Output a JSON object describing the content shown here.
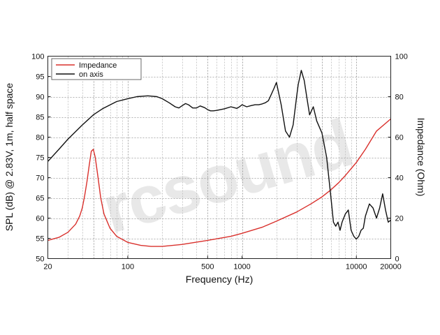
{
  "chart_data": {
    "type": "line",
    "xlabel": "Frequency (Hz)",
    "ylabel_left": "SPL (dB) @ 2.83V, 1m, half space",
    "ylabel_right": "Impedance (Ohm)",
    "x_scale": "log",
    "xlim": [
      20,
      20000
    ],
    "ylim_left": [
      50,
      100
    ],
    "ylim_right": [
      0,
      100
    ],
    "x_ticks": [
      "20",
      "100",
      "500",
      "1000",
      "10000",
      "20000"
    ],
    "y_ticks_left": [
      "50",
      "55",
      "60",
      "65",
      "70",
      "75",
      "80",
      "85",
      "90",
      "95",
      "100"
    ],
    "y_ticks_right": [
      "0",
      "20",
      "40",
      "60",
      "80",
      "100"
    ],
    "grid": true,
    "legend_position": "top-left",
    "watermark": "rcsound",
    "series": [
      {
        "name": "Impedance",
        "axis": "right",
        "color": "#d9302c",
        "x": [
          20,
          25,
          30,
          35,
          38,
          40,
          42,
          44,
          46,
          48,
          50,
          52,
          55,
          58,
          62,
          70,
          80,
          100,
          130,
          160,
          200,
          300,
          500,
          800,
          1000,
          1500,
          2000,
          3000,
          4000,
          5000,
          6000,
          7000,
          8000,
          10000,
          12000,
          15000,
          20000
        ],
        "values": [
          9,
          10.5,
          13,
          17,
          21,
          25,
          31,
          38,
          46,
          53,
          54,
          50,
          40,
          30,
          22,
          15,
          11,
          8,
          6.5,
          6,
          6,
          7,
          9,
          11,
          12.5,
          15.5,
          18.5,
          23,
          27,
          30.5,
          34,
          37.5,
          41,
          47.5,
          54,
          63,
          69
        ]
      },
      {
        "name": "on axis",
        "axis": "left",
        "color": "#111111",
        "x": [
          20,
          25,
          30,
          40,
          50,
          60,
          80,
          100,
          120,
          150,
          180,
          200,
          230,
          260,
          280,
          300,
          320,
          340,
          370,
          400,
          430,
          470,
          500,
          530,
          560,
          600,
          700,
          800,
          850,
          900,
          950,
          1000,
          1100,
          1200,
          1300,
          1400,
          1500,
          1600,
          1700,
          1800,
          1900,
          2000,
          2200,
          2400,
          2600,
          2800,
          3000,
          3100,
          3300,
          3500,
          3700,
          3900,
          4200,
          4500,
          5000,
          5500,
          6000,
          6300,
          6600,
          6900,
          7200,
          7500,
          8000,
          8500,
          9000,
          9500,
          10000,
          10500,
          11000,
          11500,
          12000,
          13000,
          14000,
          15000,
          16000,
          17000,
          18000,
          19000,
          20000
        ],
        "values": [
          74,
          77,
          79.5,
          83,
          85.5,
          87,
          88.8,
          89.5,
          90,
          90.2,
          90,
          89.5,
          88.5,
          87.5,
          87.2,
          87.8,
          88.3,
          88,
          87.2,
          87.2,
          87.7,
          87.3,
          86.8,
          86.5,
          86.5,
          86.6,
          87,
          87.5,
          87.3,
          87.1,
          87.5,
          88,
          87.5,
          87.8,
          88,
          88,
          88.2,
          88.5,
          89,
          90.5,
          92,
          93.5,
          88,
          81.5,
          80,
          83,
          90,
          93,
          96.5,
          94,
          89.5,
          85.5,
          87.5,
          84,
          81,
          75,
          65,
          59,
          58,
          59,
          57,
          59,
          61,
          62,
          57,
          55.5,
          54.8,
          55.5,
          57,
          57.5,
          60.5,
          63.5,
          62.5,
          60,
          62.5,
          66,
          62,
          59,
          59.5
        ]
      }
    ]
  }
}
